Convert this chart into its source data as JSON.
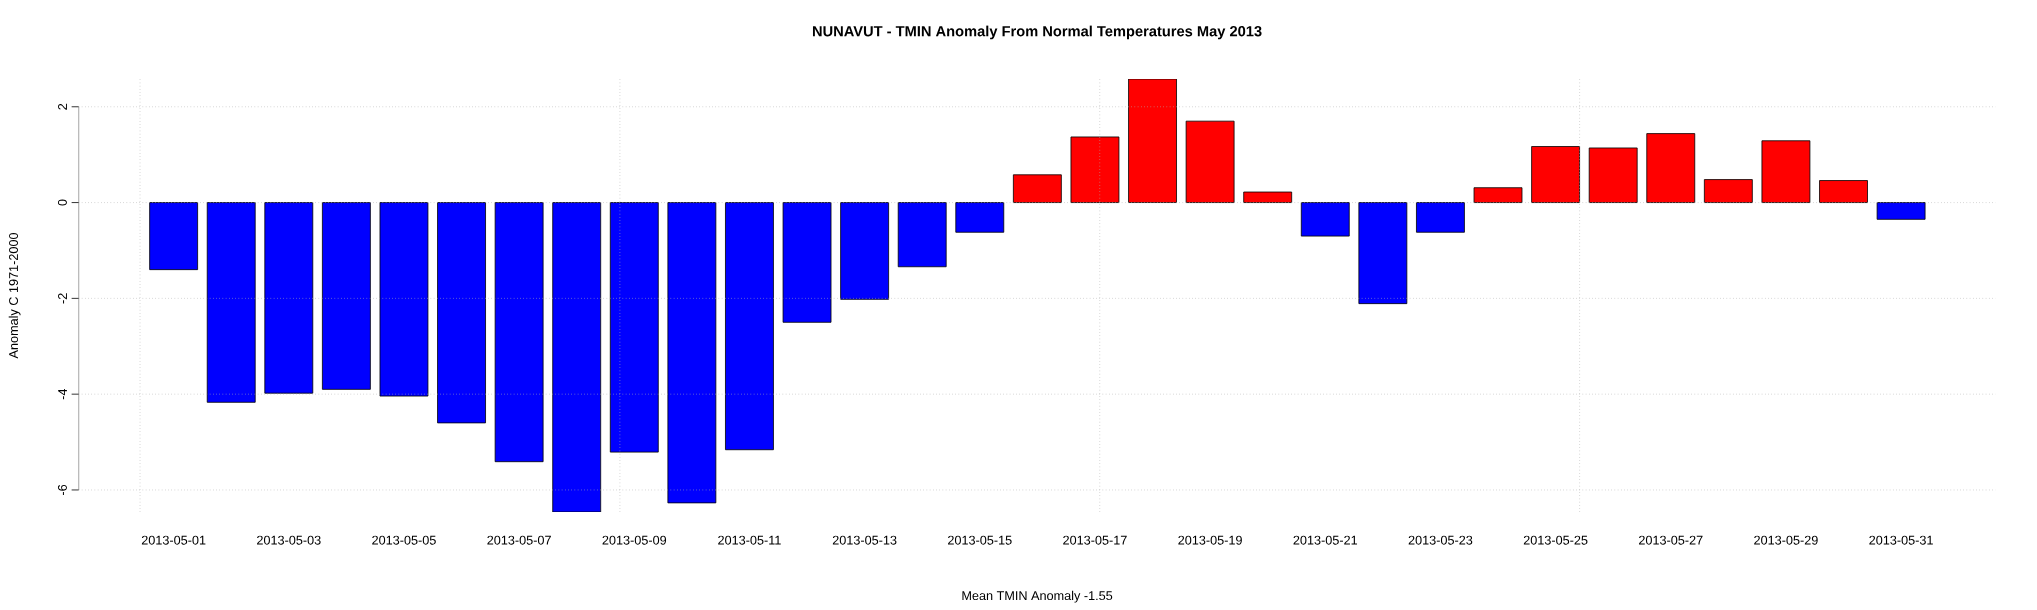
{
  "chart_data": {
    "type": "bar",
    "title": "NUNAVUT - TMIN Anomaly From Normal Temperatures May 2013",
    "xlabel": "Mean TMIN Anomaly -1.55",
    "ylabel": "Anomaly C 1971-2000",
    "categories": [
      "2013-05-01",
      null,
      "2013-05-03",
      null,
      "2013-05-05",
      null,
      "2013-05-07",
      null,
      "2013-05-09",
      null,
      "2013-05-11",
      null,
      "2013-05-13",
      null,
      "2013-05-15",
      null,
      "2013-05-17",
      null,
      "2013-05-19",
      null,
      "2013-05-21",
      null,
      "2013-05-23",
      null,
      "2013-05-25",
      null,
      "2013-05-27",
      null,
      "2013-05-29",
      null,
      "2013-05-31"
    ],
    "values": [
      -1.4,
      -4.17,
      -3.98,
      -3.9,
      -4.04,
      -4.6,
      -5.41,
      -6.46,
      -5.21,
      -6.27,
      -5.16,
      -2.5,
      -2.02,
      -1.34,
      -0.62,
      0.58,
      1.37,
      2.58,
      1.7,
      0.22,
      -0.7,
      -2.11,
      -0.62,
      0.31,
      1.17,
      1.14,
      1.44,
      0.48,
      1.29,
      0.46,
      -0.35
    ],
    "colors": [
      "#0000ff",
      "#0000ff",
      "#0000ff",
      "#0000ff",
      "#0000ff",
      "#0000ff",
      "#0000ff",
      "#0000ff",
      "#0000ff",
      "#0000ff",
      "#0000ff",
      "#0000ff",
      "#0000ff",
      "#0000ff",
      "#0000ff",
      "#ff0000",
      "#ff0000",
      "#ff0000",
      "#ff0000",
      "#ff0000",
      "#0000ff",
      "#0000ff",
      "#0000ff",
      "#ff0000",
      "#ff0000",
      "#ff0000",
      "#ff0000",
      "#ff0000",
      "#ff0000",
      "#ff0000",
      "#0000ff"
    ],
    "ylim": [
      -6.46,
      2.58
    ],
    "yticks": [
      -6,
      -4,
      -2,
      0,
      2
    ],
    "grid": true
  }
}
